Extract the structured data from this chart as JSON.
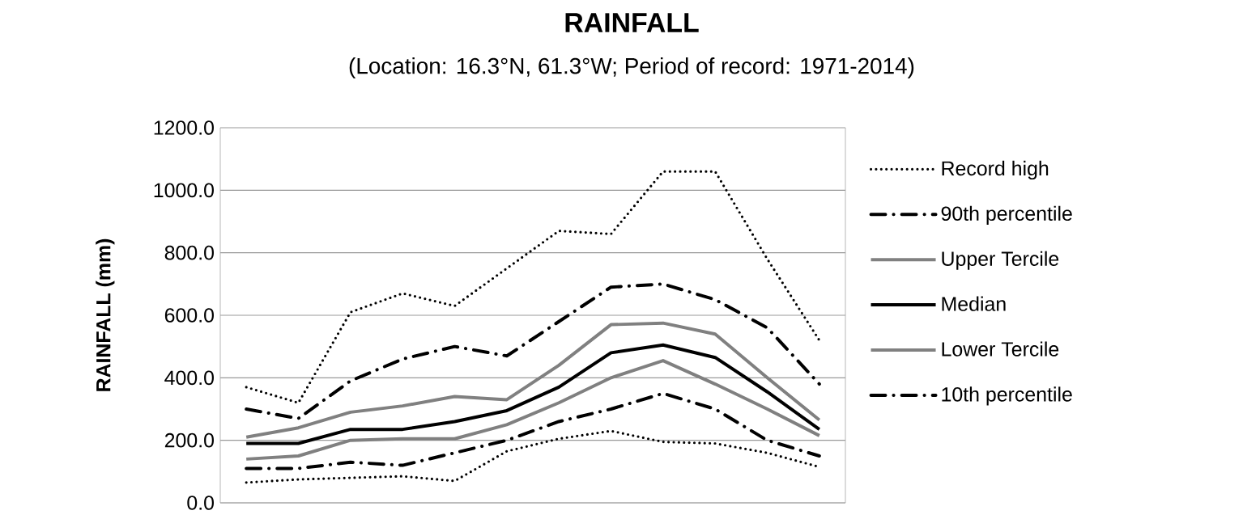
{
  "chart_data": {
    "type": "line",
    "title": "RAINFALL",
    "subtitle": "(Location: 16.3°N, 61.3°W; Period of record: 1971-2014)",
    "ylabel": "RAINFALL (mm)",
    "categories": [
      null,
      null,
      null,
      null,
      null,
      null,
      null,
      null,
      null,
      null,
      null,
      null
    ],
    "ylim": [
      0,
      1200
    ],
    "yticks": [
      {
        "value": 0,
        "label": "0.0"
      },
      {
        "value": 200,
        "label": "200.0"
      },
      {
        "value": 400,
        "label": "400.0"
      },
      {
        "value": 600,
        "label": "600.0"
      },
      {
        "value": 800,
        "label": "800.0"
      },
      {
        "value": 1000,
        "label": "1000.0"
      },
      {
        "value": 1200,
        "label": "1200.0"
      }
    ],
    "grid": "y",
    "legend": "right",
    "tick_labels": "y",
    "series": [
      {
        "name": "Record high",
        "color": "#000000",
        "line_style": "dotted",
        "values": [
          370,
          320,
          610,
          670,
          630,
          750,
          870,
          860,
          1060,
          1060,
          780,
          520
        ]
      },
      {
        "name": "90th percentile",
        "color": "#000000",
        "line_style": "dashed",
        "values": [
          300,
          270,
          390,
          460,
          500,
          470,
          580,
          690,
          700,
          650,
          560,
          380
        ]
      },
      {
        "name": "Upper Tercile",
        "color": "#808080",
        "line_style": "solid",
        "values": [
          210,
          240,
          290,
          310,
          340,
          330,
          440,
          570,
          575,
          540,
          400,
          265
        ]
      },
      {
        "name": "Median",
        "color": "#000000",
        "line_style": "solid",
        "values": [
          190,
          190,
          235,
          235,
          260,
          295,
          370,
          480,
          505,
          465,
          355,
          235
        ]
      },
      {
        "name": "Lower Tercile",
        "color": "#808080",
        "line_style": "solid",
        "values": [
          140,
          150,
          200,
          205,
          205,
          250,
          320,
          400,
          455,
          380,
          300,
          215
        ]
      },
      {
        "name": "10th percentile",
        "color": "#000000",
        "line_style": "dashed",
        "values": [
          110,
          110,
          130,
          120,
          160,
          200,
          260,
          300,
          350,
          300,
          200,
          150
        ]
      },
      {
        "color": "#000000",
        "line_style": "dotted",
        "values": [
          65,
          75,
          80,
          85,
          70,
          165,
          205,
          230,
          195,
          190,
          160,
          115
        ]
      }
    ]
  }
}
